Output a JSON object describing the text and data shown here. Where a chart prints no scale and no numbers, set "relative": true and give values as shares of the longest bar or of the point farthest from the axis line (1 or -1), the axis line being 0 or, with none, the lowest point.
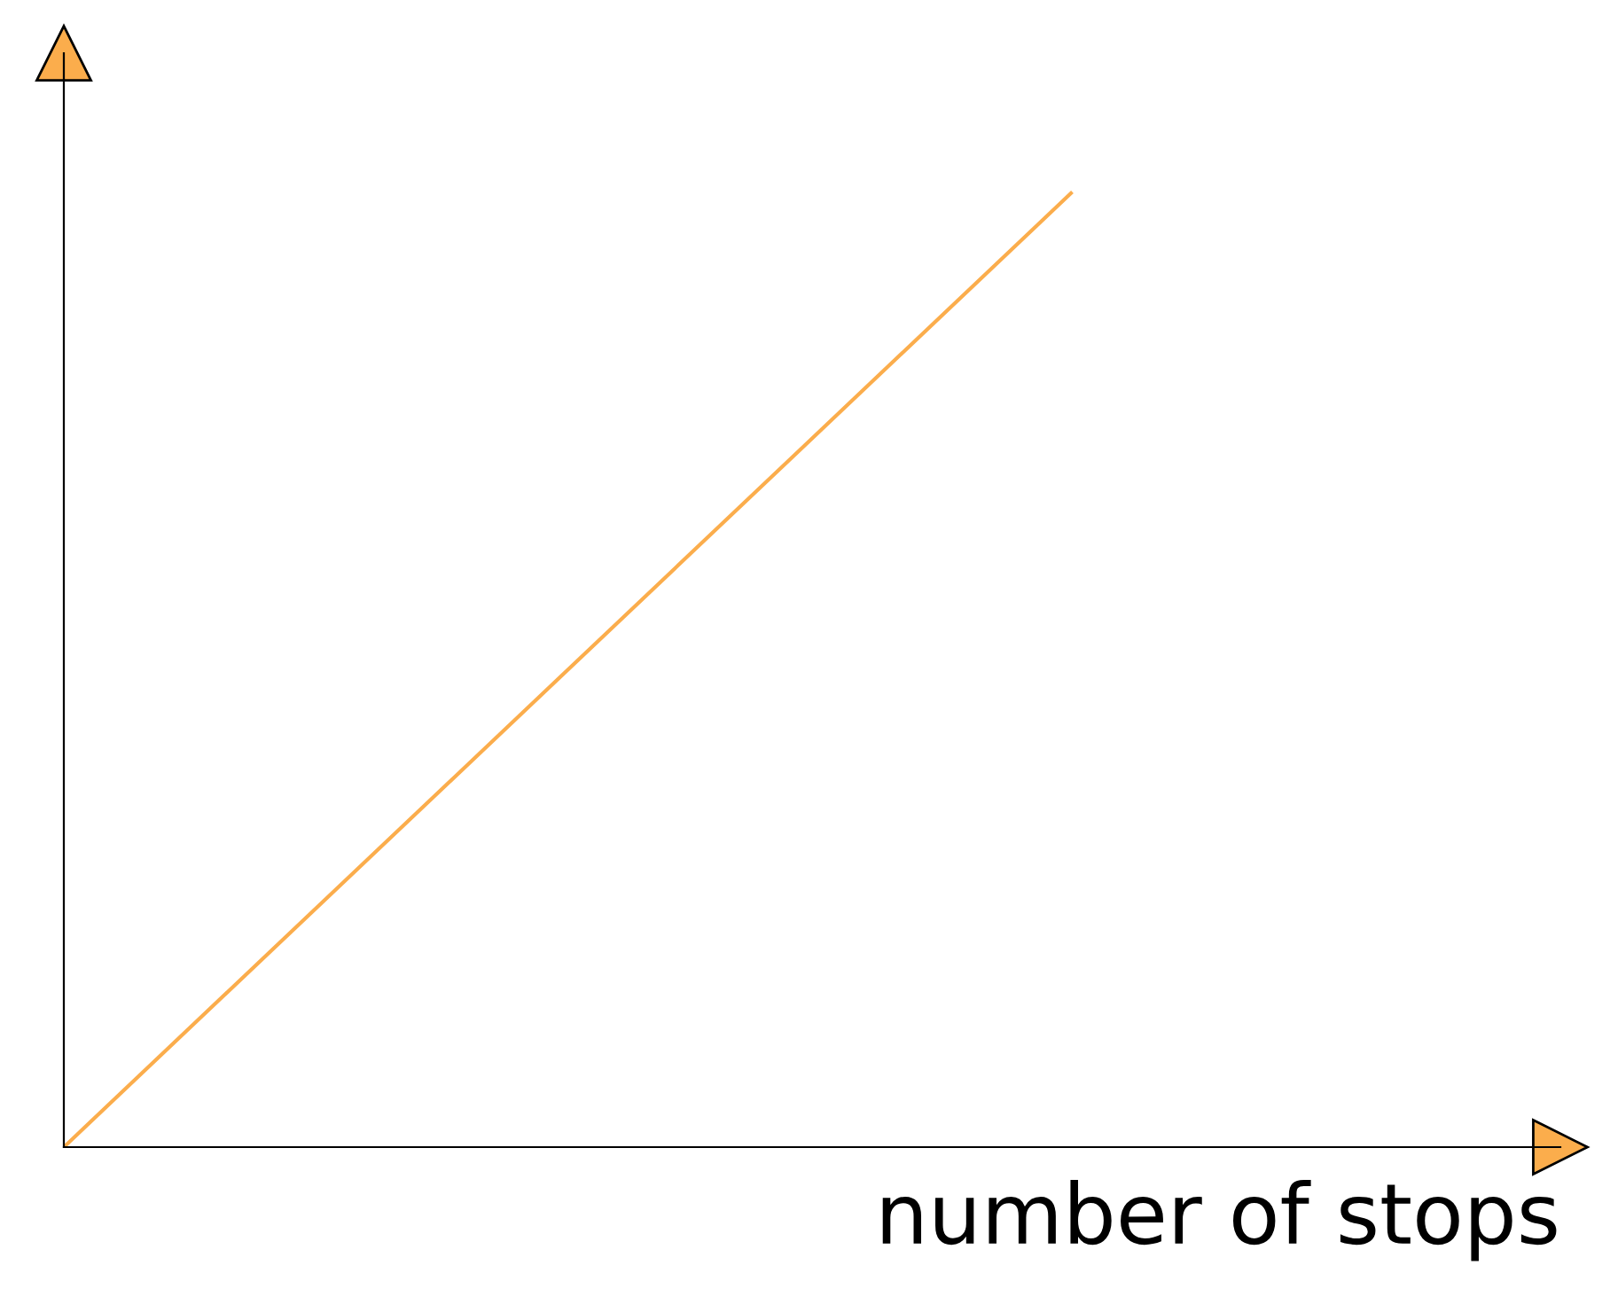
{
  "chart_data": {
    "type": "line",
    "xlabel": "number of stops",
    "categories": [
      null,
      null
    ],
    "relative": true,
    "series": [
      {
        "color": "#fbad4c",
        "values": [
          0,
          1
        ]
      }
    ],
    "marker": "none",
    "line_style": "solid"
  }
}
